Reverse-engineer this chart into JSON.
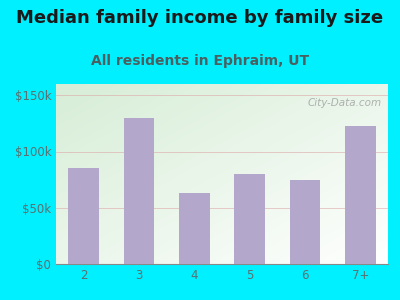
{
  "title": "Median family income by family size",
  "subtitle": "All residents in Ephraim, UT",
  "categories": [
    "2",
    "3",
    "4",
    "5",
    "6",
    "7+"
  ],
  "values": [
    85000,
    130000,
    63000,
    80000,
    75000,
    123000
  ],
  "bar_color": "#b3a8cc",
  "title_fontsize": 13.0,
  "subtitle_fontsize": 10,
  "title_color": "#1a1a1a",
  "subtitle_color": "#4a6060",
  "tick_color": "#5a7070",
  "ylim": [
    0,
    160000
  ],
  "yticks": [
    0,
    50000,
    100000,
    150000
  ],
  "ytick_labels": [
    "$0",
    "$50k",
    "$100k",
    "$150k"
  ],
  "bg_outer": "#00f0ff",
  "bg_plot_topleft": "#d8edd8",
  "bg_plot_center": "#f5fff5",
  "watermark": "City-Data.com",
  "watermark_color": "#999999"
}
